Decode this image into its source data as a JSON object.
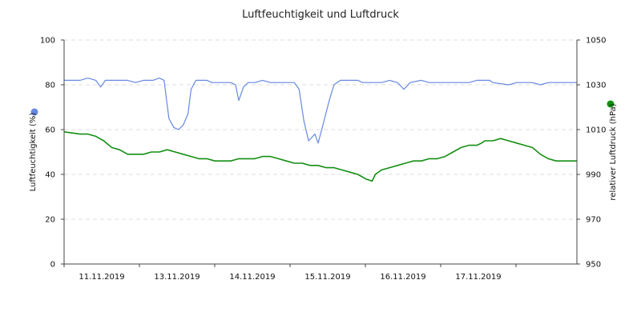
{
  "chart_data": {
    "type": "line",
    "title": "Luftfeuchtigkeit und Luftdruck",
    "x_tick_labels": [
      "11.11.2019",
      "13.11.2019",
      "14.11.2019",
      "15.11.2019",
      "16.11.2019",
      "17.11.2019"
    ],
    "y_left": {
      "label": "Luftfeuchtigkeit (%)",
      "range": [
        0,
        100
      ],
      "ticks": [
        0,
        20,
        40,
        60,
        80,
        100
      ]
    },
    "y_right": {
      "label": "relativer Luftdruck (hPa)",
      "range": [
        950,
        1050
      ],
      "ticks": [
        950,
        970,
        990,
        1010,
        1030,
        1050
      ]
    },
    "grid": true,
    "legend_placement": "markers beside each y-axis label",
    "series": [
      {
        "axis": "left",
        "color": "#6688e0",
        "points": [
          [
            0.0,
            82
          ],
          [
            1.0,
            82
          ],
          [
            1.5,
            83
          ],
          [
            2.0,
            82
          ],
          [
            2.3,
            79
          ],
          [
            2.6,
            82
          ],
          [
            4.0,
            82
          ],
          [
            4.5,
            81
          ],
          [
            5.0,
            82
          ],
          [
            5.6,
            82
          ],
          [
            6.0,
            83
          ],
          [
            6.3,
            82
          ],
          [
            6.6,
            65
          ],
          [
            6.9,
            61
          ],
          [
            7.2,
            60
          ],
          [
            7.5,
            62
          ],
          [
            7.8,
            67
          ],
          [
            8.0,
            78
          ],
          [
            8.3,
            82
          ],
          [
            9.0,
            82
          ],
          [
            9.3,
            81
          ],
          [
            10.5,
            81
          ],
          [
            10.8,
            80
          ],
          [
            11.0,
            73
          ],
          [
            11.3,
            79
          ],
          [
            11.6,
            81
          ],
          [
            12.0,
            81
          ],
          [
            12.5,
            82
          ],
          [
            13.0,
            81
          ],
          [
            14.5,
            81
          ],
          [
            14.8,
            78
          ],
          [
            15.1,
            64
          ],
          [
            15.4,
            55
          ],
          [
            15.8,
            58
          ],
          [
            16.0,
            54
          ],
          [
            16.3,
            62
          ],
          [
            16.7,
            73
          ],
          [
            17.0,
            80
          ],
          [
            17.4,
            82
          ],
          [
            18.5,
            82
          ],
          [
            18.8,
            81
          ],
          [
            20.0,
            81
          ],
          [
            20.5,
            82
          ],
          [
            21.0,
            81
          ],
          [
            21.4,
            78
          ],
          [
            21.8,
            81
          ],
          [
            22.5,
            82
          ],
          [
            23.0,
            81
          ],
          [
            25.5,
            81
          ],
          [
            26.0,
            82
          ],
          [
            26.8,
            82
          ],
          [
            27.0,
            81
          ],
          [
            28.0,
            80
          ],
          [
            28.5,
            81
          ],
          [
            29.5,
            81
          ],
          [
            30.0,
            80
          ],
          [
            30.5,
            81
          ],
          [
            32.0,
            81
          ],
          [
            32.3,
            81
          ]
        ]
      },
      {
        "axis": "right",
        "color": "#138f13",
        "points": [
          [
            0.0,
            1009
          ],
          [
            1.0,
            1008
          ],
          [
            1.5,
            1008
          ],
          [
            2.0,
            1007
          ],
          [
            2.5,
            1005
          ],
          [
            3.0,
            1002
          ],
          [
            3.5,
            1001
          ],
          [
            4.0,
            999
          ],
          [
            4.5,
            999
          ],
          [
            5.0,
            999
          ],
          [
            5.5,
            1000
          ],
          [
            6.0,
            1000
          ],
          [
            6.5,
            1001
          ],
          [
            7.0,
            1000
          ],
          [
            7.5,
            999
          ],
          [
            8.0,
            998
          ],
          [
            8.5,
            997
          ],
          [
            9.0,
            997
          ],
          [
            9.5,
            996
          ],
          [
            10.0,
            996
          ],
          [
            10.5,
            996
          ],
          [
            11.0,
            997
          ],
          [
            11.5,
            997
          ],
          [
            12.0,
            997
          ],
          [
            12.5,
            998
          ],
          [
            13.0,
            998
          ],
          [
            13.5,
            997
          ],
          [
            14.0,
            996
          ],
          [
            14.5,
            995
          ],
          [
            15.0,
            995
          ],
          [
            15.5,
            994
          ],
          [
            16.0,
            994
          ],
          [
            16.5,
            993
          ],
          [
            17.0,
            993
          ],
          [
            17.5,
            992
          ],
          [
            18.0,
            991
          ],
          [
            18.5,
            990
          ],
          [
            19.0,
            988
          ],
          [
            19.4,
            987
          ],
          [
            19.6,
            990
          ],
          [
            20.0,
            992
          ],
          [
            20.5,
            993
          ],
          [
            21.0,
            994
          ],
          [
            21.5,
            995
          ],
          [
            22.0,
            996
          ],
          [
            22.5,
            996
          ],
          [
            23.0,
            997
          ],
          [
            23.5,
            997
          ],
          [
            24.0,
            998
          ],
          [
            24.5,
            1000
          ],
          [
            25.0,
            1002
          ],
          [
            25.5,
            1003
          ],
          [
            26.0,
            1003
          ],
          [
            26.3,
            1004
          ],
          [
            26.5,
            1005
          ],
          [
            27.0,
            1005
          ],
          [
            27.5,
            1006
          ],
          [
            28.0,
            1005
          ],
          [
            28.5,
            1004
          ],
          [
            29.0,
            1003
          ],
          [
            29.5,
            1002
          ],
          [
            30.0,
            999
          ],
          [
            30.5,
            997
          ],
          [
            31.0,
            996
          ],
          [
            31.5,
            996
          ],
          [
            32.0,
            996
          ],
          [
            32.3,
            996
          ]
        ]
      }
    ]
  }
}
